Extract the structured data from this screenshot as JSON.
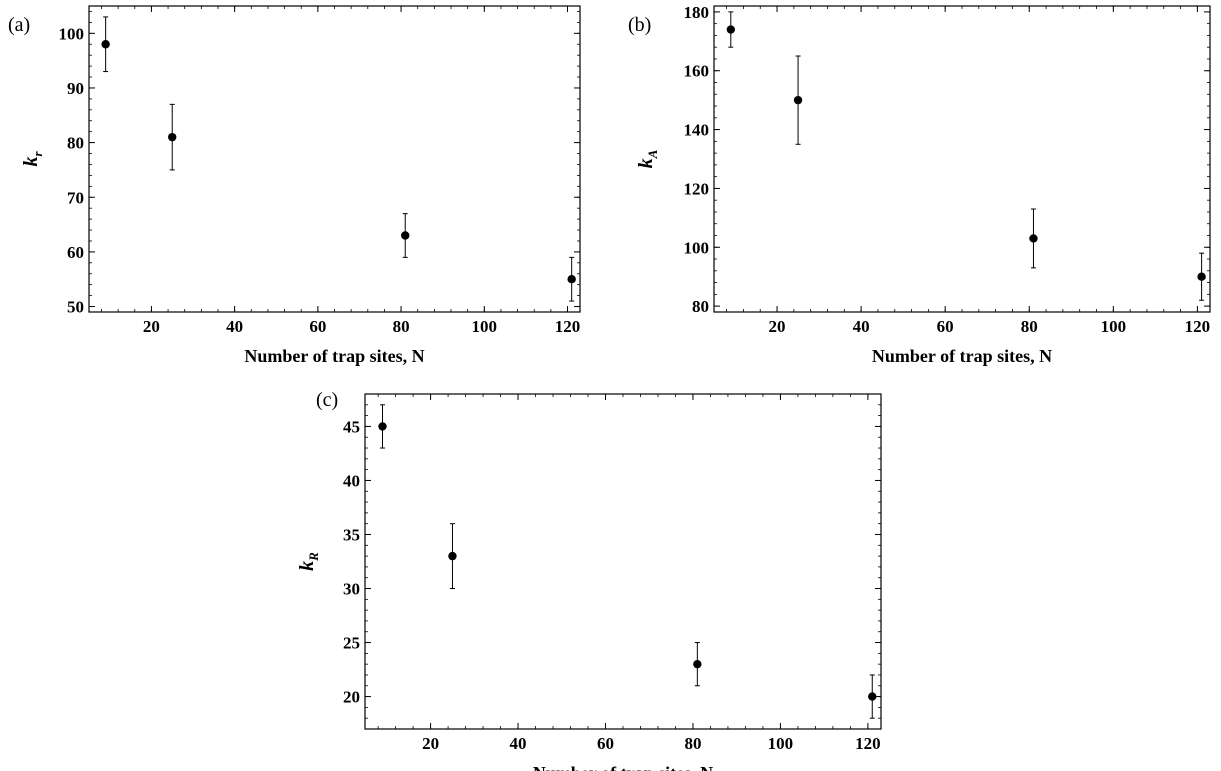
{
  "chart_data": [
    {
      "panel_label": "(a)",
      "type": "scatter",
      "xlabel": "Number of trap sites, N",
      "ylabel_main": "k",
      "ylabel_sub": "r",
      "xlim": [
        5,
        123
      ],
      "ylim": [
        49,
        105
      ],
      "x_ticks": [
        20,
        40,
        60,
        80,
        100,
        120
      ],
      "y_ticks": [
        50,
        60,
        70,
        80,
        90,
        100
      ],
      "grid": false,
      "error_bars": true,
      "points": [
        {
          "x": 9,
          "y": 98,
          "err_low": 93,
          "err_high": 103
        },
        {
          "x": 25,
          "y": 81,
          "err_low": 75,
          "err_high": 87
        },
        {
          "x": 81,
          "y": 63,
          "err_low": 59,
          "err_high": 67
        },
        {
          "x": 121,
          "y": 55,
          "err_low": 51,
          "err_high": 59
        }
      ]
    },
    {
      "panel_label": "(b)",
      "type": "scatter",
      "xlabel": "Number of trap sites, N",
      "ylabel_main": "k",
      "ylabel_sub": "A",
      "xlim": [
        5,
        123
      ],
      "ylim": [
        78,
        182
      ],
      "x_ticks": [
        20,
        40,
        60,
        80,
        100,
        120
      ],
      "y_ticks": [
        80,
        100,
        120,
        140,
        160,
        180
      ],
      "grid": false,
      "error_bars": true,
      "points": [
        {
          "x": 9,
          "y": 174,
          "err_low": 168,
          "err_high": 180
        },
        {
          "x": 25,
          "y": 150,
          "err_low": 135,
          "err_high": 165
        },
        {
          "x": 81,
          "y": 103,
          "err_low": 93,
          "err_high": 113
        },
        {
          "x": 121,
          "y": 90,
          "err_low": 82,
          "err_high": 98
        }
      ]
    },
    {
      "panel_label": "(c)",
      "type": "scatter",
      "xlabel": "Number of trap sites, N",
      "ylabel_main": "k",
      "ylabel_sub": "R",
      "xlim": [
        5,
        123
      ],
      "ylim": [
        17,
        48
      ],
      "x_ticks": [
        20,
        40,
        60,
        80,
        100,
        120
      ],
      "y_ticks": [
        20,
        25,
        30,
        35,
        40,
        45
      ],
      "grid": false,
      "error_bars": true,
      "points": [
        {
          "x": 9,
          "y": 45,
          "err_low": 43,
          "err_high": 47
        },
        {
          "x": 25,
          "y": 33,
          "err_low": 30,
          "err_high": 36
        },
        {
          "x": 81,
          "y": 23,
          "err_low": 21,
          "err_high": 25
        },
        {
          "x": 121,
          "y": 20,
          "err_low": 18,
          "err_high": 22
        }
      ]
    }
  ]
}
